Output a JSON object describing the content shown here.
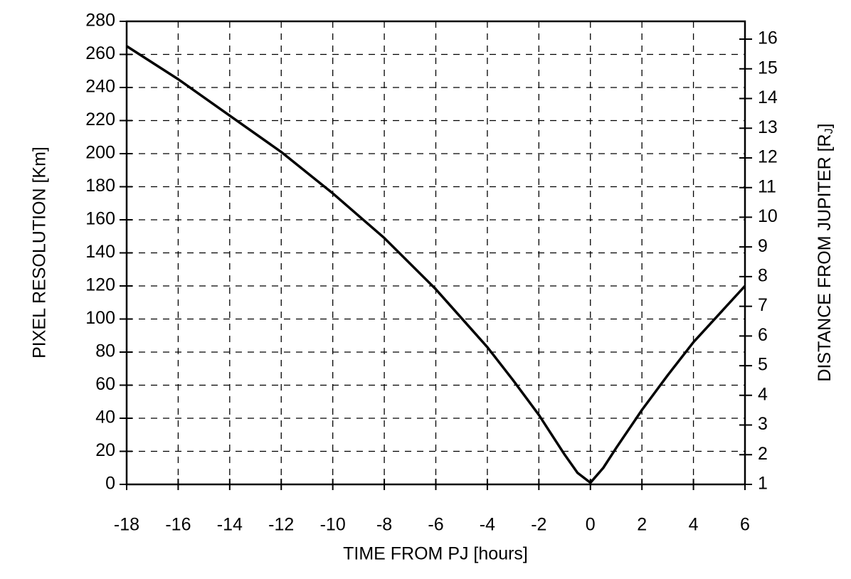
{
  "chart_data": {
    "type": "line",
    "xlabel": "TIME FROM PJ [hours]",
    "ylabel": "PIXEL RESOLUTION [Km]",
    "y2label": [
      "DISTANCE FROM JUPITER [R",
      "J",
      "]"
    ],
    "x": [
      -18,
      -16,
      -14,
      -12,
      -10,
      -8,
      -6,
      -4,
      -3,
      -2,
      -1,
      -0.5,
      0,
      0.5,
      1,
      2,
      3,
      4,
      5,
      6
    ],
    "series": [
      {
        "color": "#000000",
        "values": [
          265,
          245,
          223,
          201,
          176,
          149,
          118,
          83,
          63,
          42,
          18,
          7,
          1,
          10,
          22,
          45,
          66,
          86,
          103,
          120
        ]
      }
    ],
    "xlim": [
      -18,
      6
    ],
    "xticks": [
      -18,
      -16,
      -14,
      -12,
      -10,
      -8,
      -6,
      -4,
      -2,
      0,
      2,
      4,
      6
    ],
    "ylim": [
      0,
      280
    ],
    "yticks": [
      0,
      20,
      40,
      60,
      80,
      100,
      120,
      140,
      160,
      180,
      200,
      220,
      240,
      260,
      280
    ],
    "y2lim": [
      1,
      16.6
    ],
    "y2ticks": [
      1,
      2,
      3,
      4,
      5,
      6,
      7,
      8,
      9,
      10,
      11,
      12,
      13,
      14,
      15,
      16
    ],
    "grid": true
  }
}
